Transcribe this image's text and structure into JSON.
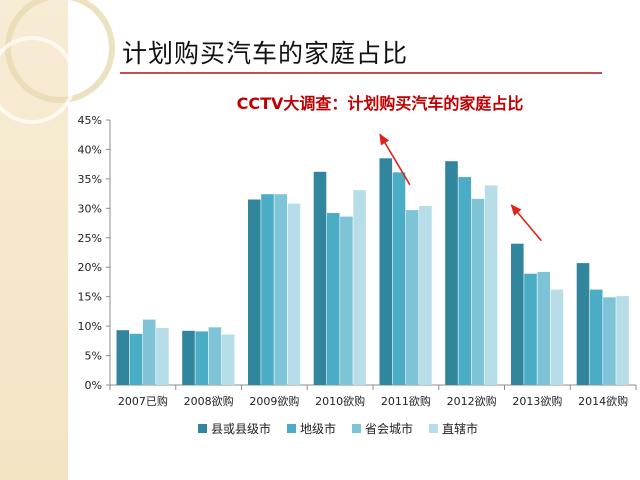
{
  "slide": {
    "title": "计划购买汽车的家庭占比"
  },
  "chart_data": {
    "type": "bar",
    "title": "CCTV大调查：计划购买汽车的家庭占比",
    "categories": [
      "2007已购",
      "2008欲购",
      "2009欲购",
      "2010欲购",
      "2011欲购",
      "2012欲购",
      "2013欲购",
      "2014欲购"
    ],
    "series": [
      {
        "name": "县或县级市",
        "color": "#31859c",
        "values": [
          9.3,
          9.2,
          31.5,
          36.2,
          38.5,
          38.0,
          24.0,
          20.7
        ]
      },
      {
        "name": "地级市",
        "color": "#4bacc6",
        "values": [
          8.7,
          9.1,
          32.4,
          29.2,
          36.1,
          35.3,
          18.9,
          16.2
        ]
      },
      {
        "name": "省会城市",
        "color": "#7fc4d6",
        "values": [
          11.1,
          9.8,
          32.4,
          28.6,
          29.7,
          31.6,
          19.2,
          14.9
        ]
      },
      {
        "name": "直辖市",
        "color": "#b7dee8",
        "values": [
          9.7,
          8.6,
          30.8,
          33.1,
          30.4,
          33.9,
          16.2,
          15.1
        ]
      }
    ],
    "ylim": [
      0,
      45
    ],
    "yticks": [
      "0%",
      "5%",
      "10%",
      "15%",
      "20%",
      "25%",
      "30%",
      "35%",
      "40%",
      "45%"
    ],
    "grid": false,
    "legend_position": "bottom",
    "annotations": [
      {
        "type": "arrow",
        "color": "#e0201b",
        "from": [
          "2011欲购",
          34.0
        ],
        "to": [
          "2010欲购",
          42.5
        ]
      },
      {
        "type": "arrow",
        "color": "#e0201b",
        "from": [
          "2013欲购",
          24.5
        ],
        "to": [
          "2012欲购",
          30.5
        ]
      }
    ]
  }
}
